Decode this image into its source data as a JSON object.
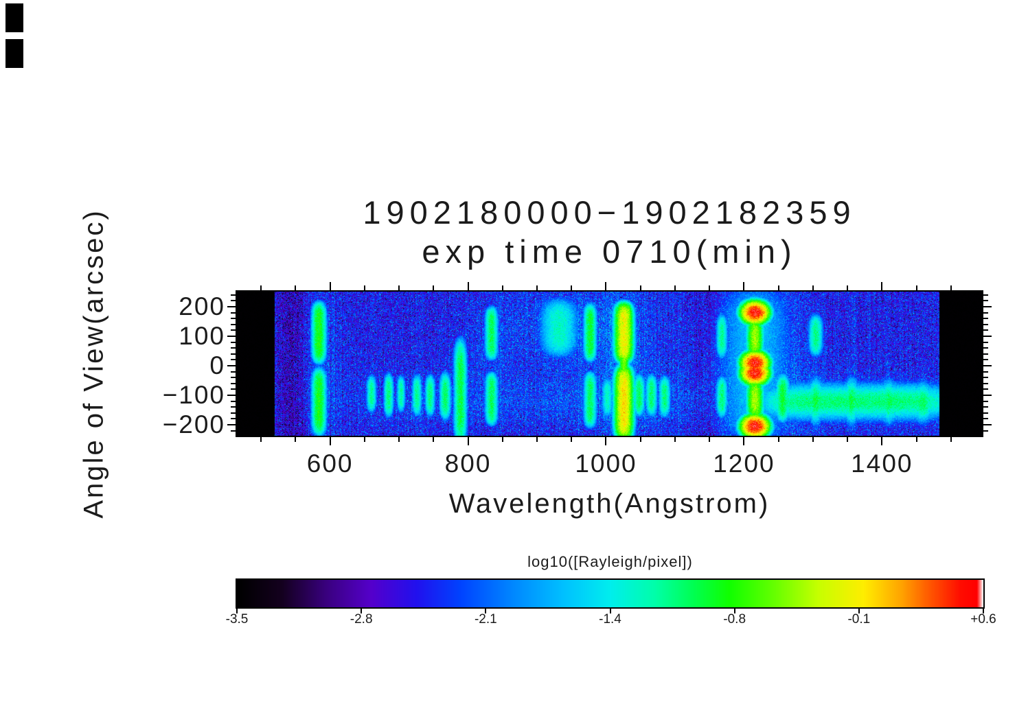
{
  "window": {
    "background": "#ffffff",
    "text_color": "#1b1b1b"
  },
  "chart_data": {
    "type": "heatmap",
    "title_line1": "1902180000−1902182359",
    "title_line2": "exp time 0710(min)",
    "title": "1902180000−1902182359 exp time 0710(min)",
    "xlabel": "Wavelength(Angstrom)",
    "ylabel": "Angle of View(arcsec)",
    "value_label": "log10([Rayleigh/pixel])",
    "xlim": [
      465,
      1545
    ],
    "ylim": [
      -237,
      251
    ],
    "vlim": [
      -3.5,
      0.6
    ],
    "data_bounds": [
      520,
      1483
    ],
    "grid": false,
    "legend": false,
    "colorbar_position": "bottom",
    "xticks": {
      "values": [
        600,
        800,
        1000,
        1200,
        1400
      ],
      "labels": [
        "600",
        "800",
        "1000",
        "1200",
        "1400"
      ],
      "minor_step": 50
    },
    "yticks": {
      "values": [
        200,
        100,
        0,
        -100,
        -200
      ],
      "labels": [
        "200",
        "100",
        "0",
        "−100",
        "−200"
      ],
      "minor_step": 20
    },
    "colorbar": {
      "label": "log10([Rayleigh/pixel])",
      "min": -3.5,
      "max": 0.6,
      "tick_labels": [
        "-3.5",
        "-2.8",
        "-2.1",
        "-1.4",
        "-0.8",
        "-0.1",
        "+0.6"
      ]
    },
    "colormap_stops": [
      {
        "t": 0.0,
        "c": "#000000"
      },
      {
        "t": 0.06,
        "c": "#14001f"
      },
      {
        "t": 0.12,
        "c": "#3a0080"
      },
      {
        "t": 0.18,
        "c": "#5500cc"
      },
      {
        "t": 0.24,
        "c": "#2211ee"
      },
      {
        "t": 0.3,
        "c": "#0044ff"
      },
      {
        "t": 0.37,
        "c": "#0088ff"
      },
      {
        "t": 0.44,
        "c": "#00c3ff"
      },
      {
        "t": 0.5,
        "c": "#00eeee"
      },
      {
        "t": 0.56,
        "c": "#00ffaa"
      },
      {
        "t": 0.61,
        "c": "#00ff55"
      },
      {
        "t": 0.66,
        "c": "#11ff00"
      },
      {
        "t": 0.72,
        "c": "#66ff00"
      },
      {
        "t": 0.78,
        "c": "#c8ff00"
      },
      {
        "t": 0.84,
        "c": "#ffee00"
      },
      {
        "t": 0.89,
        "c": "#ffa500"
      },
      {
        "t": 0.93,
        "c": "#ff5500"
      },
      {
        "t": 0.97,
        "c": "#ff0d00"
      },
      {
        "t": 0.992,
        "c": "#ff0000"
      },
      {
        "t": 1.0,
        "c": "#ffffff"
      }
    ],
    "background": {
      "base": -2.5,
      "noise_sigma": 0.32,
      "column_noise": 0.07,
      "glows": [
        {
          "l0": 950,
          "sl": 60,
          "a0": 130,
          "sa": 95,
          "amp": 0.35
        },
        {
          "l0": 1216,
          "sl": 55,
          "a0": 0,
          "sa": 210,
          "amp": 0.38
        },
        {
          "l0": 1026,
          "sl": 30,
          "a0": 0,
          "sa": 210,
          "amp": 0.3
        },
        {
          "l0": 584,
          "sl": 18,
          "a0": 0,
          "sa": 210,
          "amp": 0.25
        },
        {
          "l0": 985,
          "sl": 120,
          "a0": -120,
          "sa": 62,
          "amp": 0.28
        },
        {
          "l0": 1370,
          "sl": 115,
          "a0": -120,
          "sa": 70,
          "amp": 0.2
        },
        {
          "l0": 834,
          "sl": 25,
          "a0": 90,
          "sa": 110,
          "amp": 0.18
        },
        {
          "l0": 720,
          "sl": 90,
          "a0": -110,
          "sa": 70,
          "amp": 0.18
        },
        {
          "l0": 545,
          "sl": 16,
          "a0": 0,
          "sa": 9999,
          "amp": -0.28
        },
        {
          "l0": 1145,
          "sl": 16,
          "a0": 0,
          "sa": 9999,
          "amp": -0.18
        }
      ]
    },
    "features": [
      {
        "name": "He I 584 upper",
        "l0": 584,
        "sl": 5,
        "a0": 112,
        "da": 92,
        "ap": 6,
        "v": -0.8
      },
      {
        "name": "He I 584 lower",
        "l0": 584,
        "sl": 5,
        "a0": -122,
        "da": 100,
        "ap": 6,
        "v": -0.82
      },
      {
        "name": "airglow 660 lower",
        "l0": 660,
        "sl": 3.5,
        "a0": -95,
        "da": 52,
        "ap": 4,
        "v": -1.15
      },
      {
        "name": "airglow 685 lower",
        "l0": 685,
        "sl": 3.5,
        "a0": -100,
        "da": 62,
        "ap": 4,
        "v": -1.1
      },
      {
        "name": "airglow 703 lower",
        "l0": 703,
        "sl": 3,
        "a0": -95,
        "da": 52,
        "ap": 4,
        "v": -1.2
      },
      {
        "name": "airglow 726 lower",
        "l0": 726,
        "sl": 3.5,
        "a0": -100,
        "da": 58,
        "ap": 4,
        "v": -1.15
      },
      {
        "name": "airglow 745 lower",
        "l0": 745,
        "sl": 3.5,
        "a0": -100,
        "da": 58,
        "ap": 4,
        "v": -1.1
      },
      {
        "name": "airglow 767 lower",
        "l0": 767,
        "sl": 4,
        "a0": -103,
        "da": 66,
        "ap": 4,
        "v": -1.02
      },
      {
        "name": "airglow 789 tall",
        "l0": 789,
        "sl": 4.5,
        "a0": -88,
        "da": 158,
        "ap": 6,
        "v": -0.95
      },
      {
        "name": "O II 834 upper",
        "l0": 834,
        "sl": 4.5,
        "a0": 110,
        "da": 80,
        "ap": 6,
        "v": -1.0
      },
      {
        "name": "O II 834 lower",
        "l0": 834,
        "sl": 4.5,
        "a0": -112,
        "da": 80,
        "ap": 6,
        "v": -1.02
      },
      {
        "name": "diffuse 932 upper",
        "l0": 932,
        "sl": 14,
        "a0": 128,
        "da": 84,
        "ap": 4,
        "v": -1.3
      },
      {
        "name": "C III 977 upper",
        "l0": 977,
        "sl": 4.5,
        "a0": 112,
        "da": 86,
        "ap": 6,
        "v": -0.9
      },
      {
        "name": "C III 977 lower",
        "l0": 977,
        "sl": 4.5,
        "a0": -115,
        "da": 84,
        "ap": 6,
        "v": -1.02
      },
      {
        "name": "1002 lower",
        "l0": 1002,
        "sl": 4,
        "a0": -108,
        "da": 56,
        "ap": 4,
        "v": -1.3
      },
      {
        "name": "Ly-beta 1026 upper",
        "l0": 1026,
        "sl": 6,
        "a0": 112,
        "da": 88,
        "ap": 6,
        "v": -0.12
      },
      {
        "name": "Ly-beta 1026 waist",
        "l0": 1026,
        "sl": 3.5,
        "a0": 0,
        "da": 46,
        "ap": 4,
        "v": -0.5
      },
      {
        "name": "Ly-beta 1026 lower",
        "l0": 1026,
        "sl": 6,
        "a0": -125,
        "da": 108,
        "ap": 6,
        "v": -0.05
      },
      {
        "name": "1048 lower",
        "l0": 1048,
        "sl": 4,
        "a0": -100,
        "da": 58,
        "ap": 4,
        "v": -1.0
      },
      {
        "name": "1066 lower",
        "l0": 1066,
        "sl": 4,
        "a0": -100,
        "da": 58,
        "ap": 4,
        "v": -1.05
      },
      {
        "name": "1085 lower",
        "l0": 1085,
        "sl": 4,
        "a0": -104,
        "da": 58,
        "ap": 4,
        "v": -1.1
      },
      {
        "name": "1168 upper",
        "l0": 1168,
        "sl": 4,
        "a0": 100,
        "da": 62,
        "ap": 4,
        "v": -1.15
      },
      {
        "name": "1168 lower",
        "l0": 1168,
        "sl": 4,
        "a0": -105,
        "da": 58,
        "ap": 4,
        "v": -1.1
      },
      {
        "name": "Ly-alpha halo column",
        "l0": 1216,
        "sl": 30,
        "a0": 5,
        "da": 250,
        "ap": 6,
        "v": -1.7
      },
      {
        "name": "Ly-alpha upper ring",
        "l0": 1216,
        "sl": 8.5,
        "a0": 95,
        "r": 85,
        "w": 23,
        "v": 0.55,
        "ring": true
      },
      {
        "name": "Ly-alpha upper core",
        "l0": 1216,
        "sl": 5.5,
        "a0": 95,
        "da": 52,
        "ap": 4,
        "v": -0.4
      },
      {
        "name": "Ly-alpha lower ring",
        "l0": 1216,
        "sl": 8.5,
        "a0": -115,
        "r": 90,
        "w": 23,
        "v": 0.55,
        "ring": true
      },
      {
        "name": "Ly-alpha lower core",
        "l0": 1216,
        "sl": 5.5,
        "a0": -115,
        "da": 56,
        "ap": 4,
        "v": -0.38
      },
      {
        "name": "1256 lower",
        "l0": 1256,
        "sl": 5,
        "a0": -110,
        "da": 66,
        "ap": 4,
        "v": -0.92
      },
      {
        "name": "O I 1304 upper",
        "l0": 1304,
        "sl": 5,
        "a0": 103,
        "da": 58,
        "ap": 4,
        "v": -1.12
      },
      {
        "name": "equatorial streak",
        "l0": 1362,
        "sl": 128,
        "lp": 6,
        "a0": -122,
        "da": 30,
        "ap": 2,
        "v": -1.08
      },
      {
        "name": "O I 1304 streak",
        "l0": 1304,
        "sl": 6,
        "a0": -120,
        "da": 36,
        "ap": 2,
        "v": -0.95
      },
      {
        "name": "O I 1356 streak",
        "l0": 1356,
        "sl": 6,
        "a0": -120,
        "da": 36,
        "ap": 2,
        "v": -0.95
      },
      {
        "name": "1410 streak",
        "l0": 1410,
        "sl": 7,
        "a0": -122,
        "da": 34,
        "ap": 2,
        "v": -1.0
      },
      {
        "name": "1459 streak",
        "l0": 1459,
        "sl": 8,
        "a0": -124,
        "da": 32,
        "ap": 2,
        "v": -1.0
      }
    ]
  }
}
